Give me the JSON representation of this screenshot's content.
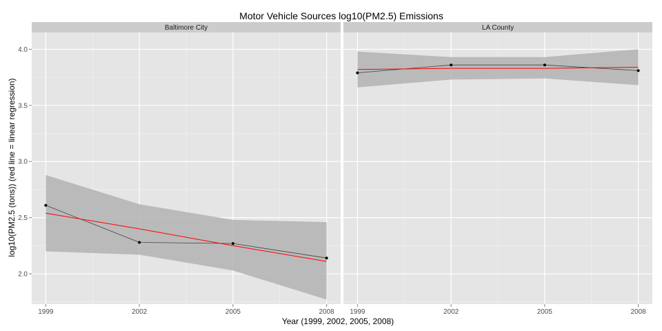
{
  "chart_data": {
    "type": "line",
    "title": "Motor Vehicle Sources log10(PM2.5) Emissions",
    "xlabel": "Year (1999, 2002, 2005, 2008)",
    "ylabel": "log10(PM2.5 (tons))  (red line = linear regression)",
    "x": [
      1999,
      2002,
      2005,
      2008
    ],
    "xlim": [
      1998.55,
      2008.45
    ],
    "ylim": [
      1.73,
      4.15
    ],
    "yticks": [
      2.0,
      2.5,
      3.0,
      3.5,
      4.0
    ],
    "ytick_labels": [
      "2.0",
      "2.5",
      "3.0",
      "3.5",
      "4.0"
    ],
    "xtick_labels": [
      "1999",
      "2002",
      "2005",
      "2008"
    ],
    "grid": true,
    "facets": [
      {
        "label": "Baltimore City",
        "observed": [
          2.61,
          2.28,
          2.27,
          2.14
        ],
        "regression": [
          2.54,
          2.4,
          2.25,
          2.11
        ],
        "ci_lower": [
          2.2,
          2.17,
          2.03,
          1.77
        ],
        "ci_upper": [
          2.88,
          2.62,
          2.48,
          2.46
        ]
      },
      {
        "label": "LA County",
        "observed": [
          3.79,
          3.86,
          3.86,
          3.81
        ],
        "regression": [
          3.82,
          3.83,
          3.83,
          3.84
        ],
        "ci_lower": [
          3.66,
          3.73,
          3.74,
          3.68
        ],
        "ci_upper": [
          3.98,
          3.93,
          3.93,
          4.0
        ]
      }
    ],
    "colors": {
      "panel_bg": "#e5e5e5",
      "strip_bg": "#cccccc",
      "grid": "#ffffff",
      "ribbon": "#b3b3b3",
      "observed_line": "#404040",
      "regression_line": "#ff0000",
      "point": "#000000"
    }
  }
}
